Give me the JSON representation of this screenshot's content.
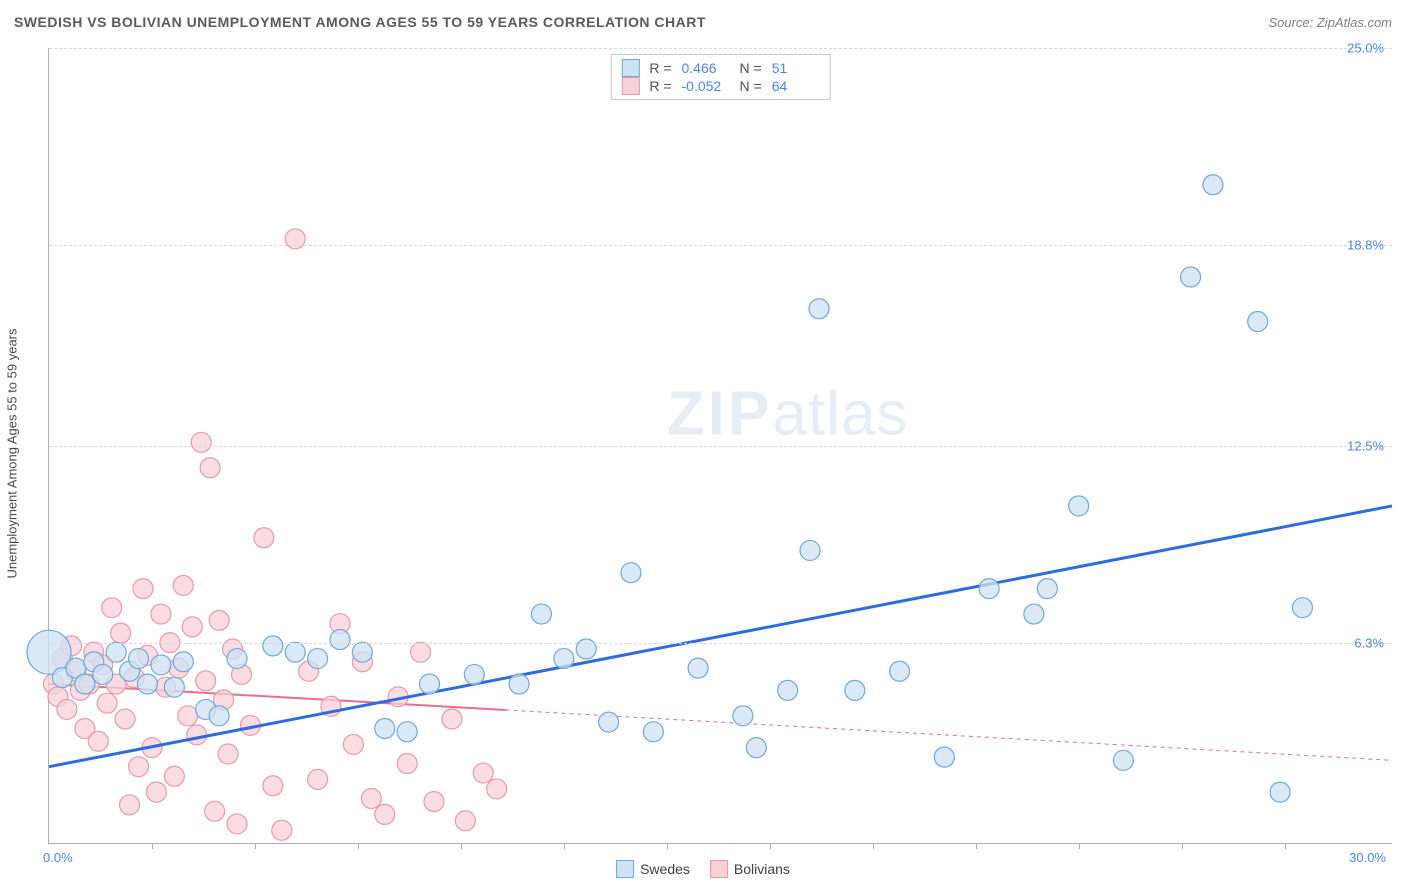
{
  "title": "SWEDISH VS BOLIVIAN UNEMPLOYMENT AMONG AGES 55 TO 59 YEARS CORRELATION CHART",
  "source": "Source: ZipAtlas.com",
  "y_axis_label": "Unemployment Among Ages 55 to 59 years",
  "watermark": {
    "a": "ZIP",
    "b": "atlas"
  },
  "chart": {
    "type": "scatter",
    "xlim": [
      0,
      30
    ],
    "ylim": [
      0,
      25
    ],
    "x_min_label": "0.0%",
    "x_max_label": "30.0%",
    "y_ticks": [
      {
        "v": 6.3,
        "label": "6.3%"
      },
      {
        "v": 12.5,
        "label": "12.5%"
      },
      {
        "v": 18.8,
        "label": "18.8%"
      },
      {
        "v": 25.0,
        "label": "25.0%"
      }
    ],
    "x_tick_positions": [
      2.3,
      4.6,
      6.9,
      9.2,
      11.5,
      13.8,
      16.1,
      18.4,
      20.7,
      23.0,
      25.3,
      27.6
    ],
    "background_color": "#ffffff",
    "grid_color": "#d8d8d8",
    "series": [
      {
        "name": "Swedes",
        "marker_fill": "#cfe2f3",
        "marker_stroke": "#6fa8dc",
        "marker_r": 10,
        "line_color": "#2d6cdf",
        "line_width": 3,
        "line_dash": "none",
        "trend": {
          "x1": 0,
          "y1": 2.4,
          "x2": 30,
          "y2": 10.6
        },
        "stats": {
          "R": "0.466",
          "N": "51"
        },
        "points": [
          [
            0.0,
            6.0,
            22
          ],
          [
            0.3,
            5.2,
            10
          ],
          [
            0.6,
            5.5,
            10
          ],
          [
            0.8,
            5.0,
            10
          ],
          [
            1.0,
            5.7,
            10
          ],
          [
            1.2,
            5.3,
            10
          ],
          [
            1.5,
            6.0,
            10
          ],
          [
            1.8,
            5.4,
            10
          ],
          [
            2.0,
            5.8,
            10
          ],
          [
            2.2,
            5.0,
            10
          ],
          [
            2.5,
            5.6,
            10
          ],
          [
            2.8,
            4.9,
            10
          ],
          [
            3.0,
            5.7,
            10
          ],
          [
            3.5,
            4.2,
            10
          ],
          [
            3.8,
            4.0,
            10
          ],
          [
            4.2,
            5.8,
            10
          ],
          [
            5.0,
            6.2,
            10
          ],
          [
            5.5,
            6.0,
            10
          ],
          [
            6.0,
            5.8,
            10
          ],
          [
            6.5,
            6.4,
            10
          ],
          [
            7.0,
            6.0,
            10
          ],
          [
            7.5,
            3.6,
            10
          ],
          [
            8.0,
            3.5,
            10
          ],
          [
            8.5,
            5.0,
            10
          ],
          [
            9.5,
            5.3,
            10
          ],
          [
            10.5,
            5.0,
            10
          ],
          [
            11.0,
            7.2,
            10
          ],
          [
            11.5,
            5.8,
            10
          ],
          [
            12.0,
            6.1,
            10
          ],
          [
            12.5,
            3.8,
            10
          ],
          [
            13.0,
            8.5,
            10
          ],
          [
            13.5,
            3.5,
            10
          ],
          [
            14.5,
            5.5,
            10
          ],
          [
            15.5,
            4.0,
            10
          ],
          [
            15.8,
            3.0,
            10
          ],
          [
            16.5,
            4.8,
            10
          ],
          [
            17.0,
            9.2,
            10
          ],
          [
            17.2,
            16.8,
            10
          ],
          [
            18.0,
            4.8,
            10
          ],
          [
            19.0,
            5.4,
            10
          ],
          [
            20.0,
            2.7,
            10
          ],
          [
            21.0,
            8.0,
            10
          ],
          [
            22.0,
            7.2,
            10
          ],
          [
            22.3,
            8.0,
            10
          ],
          [
            23.0,
            10.6,
            10
          ],
          [
            24.0,
            2.6,
            10
          ],
          [
            25.5,
            17.8,
            10
          ],
          [
            26.0,
            20.7,
            10
          ],
          [
            27.0,
            16.4,
            10
          ],
          [
            27.5,
            1.6,
            10
          ],
          [
            28.0,
            7.4,
            10
          ]
        ]
      },
      {
        "name": "Bolivians",
        "marker_fill": "#f8d0d8",
        "marker_stroke": "#e89aab",
        "marker_r": 10,
        "line_color": "#e76f8c",
        "line_width": 2,
        "line_dash": "4 4",
        "trend": {
          "x1": 0,
          "y1": 5.0,
          "x2": 30,
          "y2": 2.6
        },
        "trend_solid_until_x": 10.2,
        "stats": {
          "R": "-0.052",
          "N": "64"
        },
        "points": [
          [
            0.1,
            5.0,
            10
          ],
          [
            0.2,
            4.6,
            10
          ],
          [
            0.3,
            5.8,
            10
          ],
          [
            0.4,
            4.2,
            10
          ],
          [
            0.5,
            6.2,
            10
          ],
          [
            0.6,
            5.4,
            10
          ],
          [
            0.7,
            4.8,
            10
          ],
          [
            0.8,
            3.6,
            10
          ],
          [
            0.9,
            5.0,
            10
          ],
          [
            1.0,
            6.0,
            10
          ],
          [
            1.1,
            3.2,
            10
          ],
          [
            1.2,
            5.6,
            10
          ],
          [
            1.3,
            4.4,
            10
          ],
          [
            1.4,
            7.4,
            10
          ],
          [
            1.5,
            5.0,
            10
          ],
          [
            1.6,
            6.6,
            10
          ],
          [
            1.7,
            3.9,
            10
          ],
          [
            1.8,
            1.2,
            10
          ],
          [
            1.9,
            5.2,
            10
          ],
          [
            2.0,
            2.4,
            10
          ],
          [
            2.1,
            8.0,
            10
          ],
          [
            2.2,
            5.9,
            10
          ],
          [
            2.3,
            3.0,
            10
          ],
          [
            2.4,
            1.6,
            10
          ],
          [
            2.5,
            7.2,
            10
          ],
          [
            2.6,
            4.9,
            10
          ],
          [
            2.7,
            6.3,
            10
          ],
          [
            2.8,
            2.1,
            10
          ],
          [
            2.9,
            5.5,
            10
          ],
          [
            3.0,
            8.1,
            10
          ],
          [
            3.1,
            4.0,
            10
          ],
          [
            3.2,
            6.8,
            10
          ],
          [
            3.3,
            3.4,
            10
          ],
          [
            3.4,
            12.6,
            10
          ],
          [
            3.5,
            5.1,
            10
          ],
          [
            3.6,
            11.8,
            10
          ],
          [
            3.7,
            1.0,
            10
          ],
          [
            3.8,
            7.0,
            10
          ],
          [
            3.9,
            4.5,
            10
          ],
          [
            4.0,
            2.8,
            10
          ],
          [
            4.1,
            6.1,
            10
          ],
          [
            4.2,
            0.6,
            10
          ],
          [
            4.3,
            5.3,
            10
          ],
          [
            4.5,
            3.7,
            10
          ],
          [
            4.8,
            9.6,
            10
          ],
          [
            5.0,
            1.8,
            10
          ],
          [
            5.2,
            0.4,
            10
          ],
          [
            5.5,
            19.0,
            10
          ],
          [
            5.8,
            5.4,
            10
          ],
          [
            6.0,
            2.0,
            10
          ],
          [
            6.3,
            4.3,
            10
          ],
          [
            6.5,
            6.9,
            10
          ],
          [
            6.8,
            3.1,
            10
          ],
          [
            7.0,
            5.7,
            10
          ],
          [
            7.2,
            1.4,
            10
          ],
          [
            7.5,
            0.9,
            10
          ],
          [
            7.8,
            4.6,
            10
          ],
          [
            8.0,
            2.5,
            10
          ],
          [
            8.3,
            6.0,
            10
          ],
          [
            8.6,
            1.3,
            10
          ],
          [
            9.0,
            3.9,
            10
          ],
          [
            9.3,
            0.7,
            10
          ],
          [
            9.7,
            2.2,
            10
          ],
          [
            10.0,
            1.7,
            10
          ]
        ]
      }
    ]
  },
  "legend_labels": {
    "swedes": "Swedes",
    "bolivians": "Bolivians"
  },
  "stat_labels": {
    "R": "R =",
    "N": "N ="
  }
}
